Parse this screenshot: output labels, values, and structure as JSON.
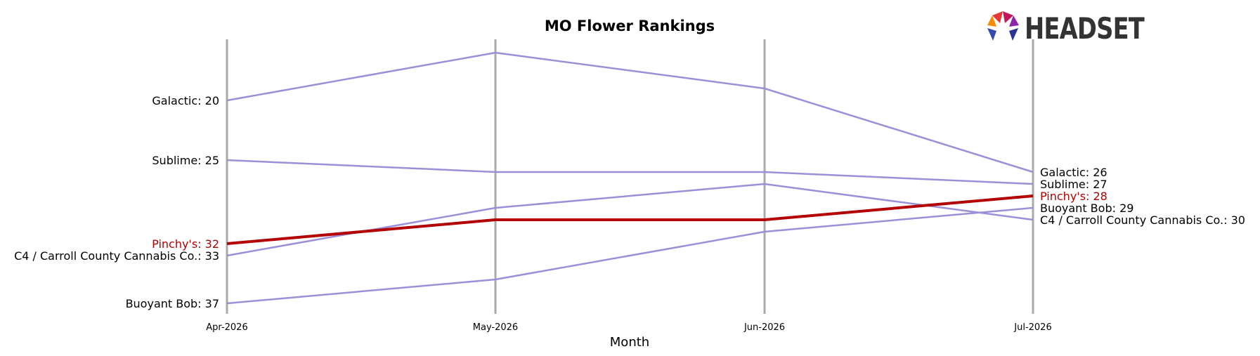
{
  "chart_data": {
    "type": "line",
    "title": "MO Flower Rankings",
    "xlabel": "Month",
    "ylabel": "",
    "x": [
      "Apr-2026",
      "May-2026",
      "Jun-2026",
      "Jul-2026"
    ],
    "y_inverted": true,
    "ylim": [
      18,
      38
    ],
    "grid": "vertical lines at each month",
    "highlight_series": "Pinchy's",
    "colors": {
      "default_series": "#9b8fd8",
      "highlight_series": "#b30000",
      "gridline": "#aaaaaa",
      "text": "#000000"
    },
    "series": [
      {
        "name": "Galactic",
        "values": [
          20,
          16,
          19,
          26
        ]
      },
      {
        "name": "Sublime",
        "values": [
          25,
          26,
          26,
          27
        ]
      },
      {
        "name": "Pinchy's",
        "values": [
          32,
          30,
          30,
          28
        ]
      },
      {
        "name": "C4 / Carroll County Cannabis Co.",
        "values": [
          33,
          29,
          27,
          30
        ]
      },
      {
        "name": "Buoyant Bob",
        "values": [
          37,
          35,
          31,
          29
        ]
      }
    ]
  },
  "logo": {
    "text": "HEADSET"
  }
}
